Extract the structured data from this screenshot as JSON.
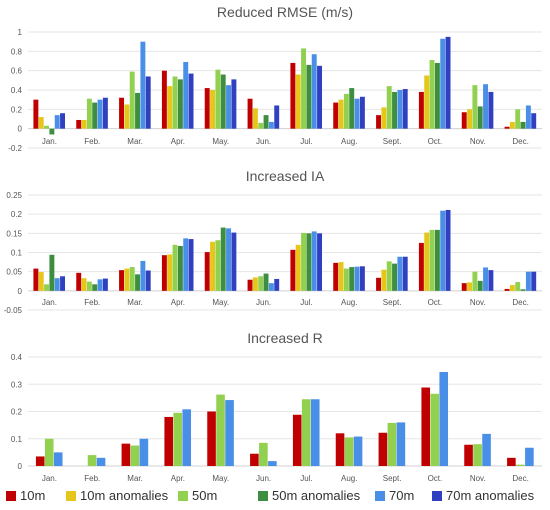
{
  "chart_data": [
    {
      "type": "bar",
      "title": "Reduced RMSE (m/s)",
      "categories": [
        "Jan.",
        "Feb.",
        "Mar.",
        "Apr.",
        "May.",
        "Jun.",
        "Jul.",
        "Aug.",
        "Sept.",
        "Oct.",
        "Nov.",
        "Dec."
      ],
      "ylim": [
        -0.2,
        1
      ],
      "yticks": [
        "-0.2",
        "0",
        "0.2",
        "0.4",
        "0.6",
        "0.8",
        "1"
      ],
      "series": [
        {
          "name": "10m",
          "values": [
            0.3,
            0.09,
            0.32,
            0.6,
            0.42,
            0.31,
            0.68,
            0.27,
            0.14,
            0.38,
            0.17,
            0.02
          ]
        },
        {
          "name": "10m anomalies",
          "values": [
            0.12,
            0.09,
            0.25,
            0.44,
            0.4,
            0.21,
            0.56,
            0.3,
            0.22,
            0.55,
            0.2,
            0.07
          ]
        },
        {
          "name": "50m",
          "values": [
            0.03,
            0.31,
            0.59,
            0.54,
            0.61,
            0.06,
            0.83,
            0.36,
            0.44,
            0.71,
            0.45,
            0.2
          ]
        },
        {
          "name": "50m anomalies",
          "values": [
            -0.06,
            0.27,
            0.37,
            0.51,
            0.56,
            0.14,
            0.66,
            0.42,
            0.38,
            0.68,
            0.23,
            0.07
          ]
        },
        {
          "name": "70m",
          "values": [
            0.14,
            0.3,
            0.9,
            0.69,
            0.45,
            0.07,
            0.77,
            0.31,
            0.4,
            0.93,
            0.46,
            0.24
          ]
        },
        {
          "name": "70m anomalies",
          "values": [
            0.16,
            0.32,
            0.54,
            0.57,
            0.51,
            0.24,
            0.65,
            0.33,
            0.41,
            0.95,
            0.38,
            0.16
          ]
        }
      ]
    },
    {
      "type": "bar",
      "title": "Increased IA",
      "categories": [
        "Jan.",
        "Feb.",
        "Mar.",
        "Apr.",
        "May.",
        "Jun.",
        "Jul.",
        "Aug.",
        "Sept.",
        "Oct.",
        "Nov.",
        "Dec."
      ],
      "ylim": [
        -0.05,
        0.25
      ],
      "yticks": [
        "-0.05",
        "0",
        "0.05",
        "0.1",
        "0.15",
        "0.2",
        "0.25"
      ],
      "series": [
        {
          "name": "10m",
          "values": [
            0.058,
            0.047,
            0.054,
            0.093,
            0.101,
            0.029,
            0.107,
            0.073,
            0.034,
            0.125,
            0.02,
            0.005
          ]
        },
        {
          "name": "10m anomalies",
          "values": [
            0.049,
            0.033,
            0.058,
            0.095,
            0.128,
            0.035,
            0.12,
            0.075,
            0.055,
            0.152,
            0.022,
            0.015
          ]
        },
        {
          "name": "50m",
          "values": [
            0.017,
            0.024,
            0.062,
            0.12,
            0.132,
            0.038,
            0.151,
            0.058,
            0.077,
            0.159,
            0.05,
            0.023
          ]
        },
        {
          "name": "50m anomalies",
          "values": [
            0.094,
            0.017,
            0.043,
            0.117,
            0.165,
            0.045,
            0.15,
            0.062,
            0.071,
            0.159,
            0.026,
            0.004
          ]
        },
        {
          "name": "70m",
          "values": [
            0.033,
            0.03,
            0.078,
            0.137,
            0.163,
            0.02,
            0.155,
            0.063,
            0.089,
            0.209,
            0.061,
            0.05
          ]
        },
        {
          "name": "70m anomalies",
          "values": [
            0.038,
            0.032,
            0.053,
            0.135,
            0.152,
            0.031,
            0.15,
            0.064,
            0.089,
            0.211,
            0.054,
            0.05
          ]
        }
      ]
    },
    {
      "type": "bar",
      "title": "Increased R",
      "categories": [
        "Jan.",
        "Feb.",
        "Mar.",
        "Apr.",
        "May.",
        "Jun.",
        "Jul.",
        "Aug.",
        "Sept.",
        "Oct.",
        "Nov.",
        "Dec."
      ],
      "ylim": [
        0,
        0.4
      ],
      "yticks": [
        "0",
        "0.1",
        "0.2",
        "0.3",
        "0.4"
      ],
      "series": [
        {
          "name": "10m",
          "values": [
            0.035,
            0.0,
            0.082,
            0.18,
            0.2,
            0.045,
            0.188,
            0.12,
            0.122,
            0.288,
            0.078,
            0.03
          ]
        },
        {
          "name": "50m",
          "values": [
            0.1,
            0.04,
            0.075,
            0.195,
            0.262,
            0.085,
            0.245,
            0.105,
            0.158,
            0.265,
            0.08,
            0.005
          ]
        },
        {
          "name": "70m",
          "values": [
            0.05,
            0.03,
            0.1,
            0.208,
            0.242,
            0.018,
            0.245,
            0.108,
            0.16,
            0.345,
            0.118,
            0.067
          ]
        }
      ]
    }
  ],
  "legend": [
    {
      "label": "10m",
      "color": "#C00000"
    },
    {
      "label": "10m anomalies",
      "color": "#E6C619"
    },
    {
      "label": "50m",
      "color": "#92D050"
    },
    {
      "label": "50m anomalies",
      "color": "#3E8E41"
    },
    {
      "label": "70m",
      "color": "#4A8FE7"
    },
    {
      "label": "70m anomalies",
      "color": "#3040C0"
    }
  ],
  "colors": {
    "10m": "#C00000",
    "10m anomalies": "#E6C619",
    "50m": "#92D050",
    "50m anomalies": "#3E8E41",
    "70m": "#4A8FE7",
    "70m anomalies": "#3040C0"
  }
}
